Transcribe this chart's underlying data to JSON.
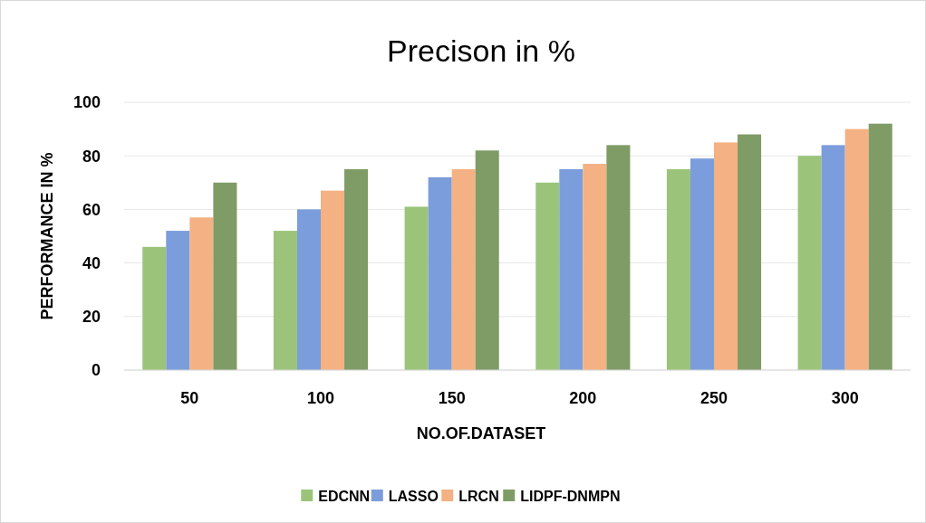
{
  "chart_data": {
    "type": "bar",
    "title": "Precison in %",
    "xlabel": "NO.OF.DATASET",
    "ylabel": "PERFORMANCE IN %",
    "categories": [
      "50",
      "100",
      "150",
      "200",
      "250",
      "300"
    ],
    "series": [
      {
        "name": "EDCNN",
        "color": "#9bc47a",
        "values": [
          46,
          52,
          61,
          70,
          75,
          80
        ]
      },
      {
        "name": "LASSO",
        "color": "#7b9ddb",
        "values": [
          52,
          60,
          72,
          75,
          79,
          84
        ]
      },
      {
        "name": "LRCN",
        "color": "#f4b183",
        "values": [
          57,
          67,
          75,
          77,
          85,
          90
        ]
      },
      {
        "name": "LIDPF-DNMPN",
        "color": "#7f9c66",
        "values": [
          70,
          75,
          82,
          84,
          88,
          92
        ]
      }
    ],
    "ylim": [
      0,
      100
    ],
    "yticks": [
      0,
      20,
      40,
      60,
      80,
      100
    ],
    "grid": "y",
    "legend": "bottom"
  }
}
